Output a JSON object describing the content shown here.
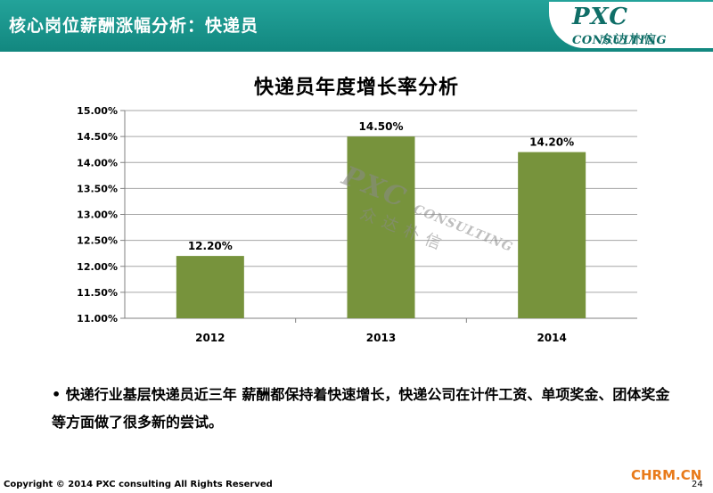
{
  "header": {
    "title": "核心岗位薪酬涨幅分析：快递员"
  },
  "logo": {
    "name_big": "PXC",
    "name_small": "CONSULTING",
    "name_cn": "众达朴信"
  },
  "watermark": {
    "big": "PXC",
    "small": "CONSULTING",
    "cn": "众达朴信"
  },
  "chart_data": {
    "type": "bar",
    "title": "快递员年度增长率分析",
    "categories": [
      "2012",
      "2013",
      "2014"
    ],
    "values": [
      0.122,
      0.145,
      0.142
    ],
    "data_labels": [
      "12.20%",
      "14.50%",
      "14.20%"
    ],
    "ylim": [
      0.11,
      0.15
    ],
    "yticks": [
      "11.00%",
      "11.50%",
      "12.00%",
      "12.50%",
      "13.00%",
      "13.50%",
      "14.00%",
      "14.50%",
      "15.00%"
    ],
    "ytick_values": [
      0.11,
      0.115,
      0.12,
      0.125,
      0.13,
      0.135,
      0.14,
      0.145,
      0.15
    ],
    "grid": true,
    "bar_color": "#77933c",
    "grid_color": "#a6a6a6"
  },
  "bullet_text": "• 快递行业基层快递员近三年 薪酬都保持着快速增长，快递公司在计件工资、单项奖金、团体奖金等方面做了很多新的尝试。",
  "footer": {
    "copyright": "Copyright © 2014  PXC consulting All Rights Reserved",
    "page": "24",
    "site": "CHRM.CN"
  }
}
